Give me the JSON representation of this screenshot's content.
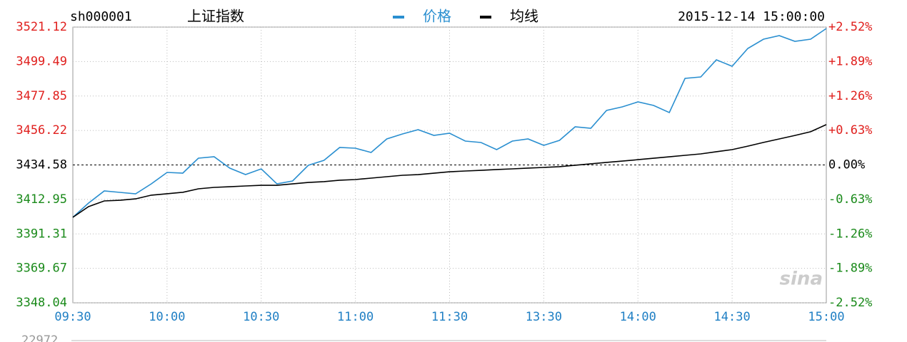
{
  "chart_data": {
    "type": "line",
    "symbol": "sh000001",
    "title": "上证指数",
    "datetime": "2015-12-14 15:00:00",
    "watermark": "sina",
    "volume_max": 22972,
    "x": [
      "09:30",
      "09:35",
      "09:40",
      "09:45",
      "09:50",
      "09:55",
      "10:00",
      "10:05",
      "10:10",
      "10:15",
      "10:20",
      "10:25",
      "10:30",
      "10:35",
      "10:40",
      "10:45",
      "10:50",
      "10:55",
      "11:00",
      "11:05",
      "11:10",
      "11:15",
      "11:20",
      "11:25",
      "11:30",
      "13:05",
      "13:10",
      "13:15",
      "13:20",
      "13:25",
      "13:30",
      "13:35",
      "13:40",
      "13:45",
      "13:50",
      "13:55",
      "14:00",
      "14:05",
      "14:10",
      "14:15",
      "14:20",
      "14:25",
      "14:30",
      "14:35",
      "14:40",
      "14:45",
      "14:50",
      "14:55",
      "15:00"
    ],
    "xticks": [
      "09:30",
      "10:00",
      "10:30",
      "11:00",
      "11:30",
      "13:30",
      "14:00",
      "14:30",
      "15:00"
    ],
    "series": [
      {
        "name": "价格",
        "color": "#2a8fd0",
        "values": [
          3401.71,
          3410.65,
          3418.25,
          3417.36,
          3416.47,
          3422.73,
          3429.88,
          3429.44,
          3438.83,
          3439.72,
          3432.57,
          3428.54,
          3432.12,
          3422.73,
          3424.52,
          3434.36,
          3437.49,
          3445.54,
          3445.09,
          3442.41,
          3450.9,
          3454.03,
          3456.72,
          3453.14,
          3454.48,
          3449.56,
          3448.67,
          3444.19,
          3449.56,
          3450.9,
          3446.88,
          3450.01,
          3458.51,
          3457.61,
          3468.79,
          3471.03,
          3474.16,
          3471.92,
          3467.45,
          3488.92,
          3489.81,
          3500.55,
          3496.52,
          3507.7,
          3513.52,
          3515.75,
          3512.18,
          3513.52,
          3520.23
        ]
      },
      {
        "name": "均线",
        "color": "#000000",
        "values": [
          3401.7,
          3408.4,
          3412.0,
          3412.4,
          3413.3,
          3415.6,
          3416.5,
          3417.4,
          3419.6,
          3420.5,
          3420.9,
          3421.4,
          3421.8,
          3421.8,
          3422.7,
          3423.6,
          3424.1,
          3425.0,
          3425.4,
          3426.3,
          3427.2,
          3428.1,
          3428.5,
          3429.4,
          3430.3,
          3430.8,
          3431.2,
          3431.7,
          3432.1,
          3432.6,
          3433.0,
          3433.5,
          3434.4,
          3435.3,
          3436.2,
          3437.0,
          3437.9,
          3438.8,
          3439.7,
          3440.6,
          3441.5,
          3442.9,
          3444.2,
          3446.4,
          3448.7,
          3450.9,
          3453.1,
          3455.4,
          3459.9
        ]
      }
    ],
    "ylim": [
      3348.04,
      3521.12
    ],
    "yticks": [
      3348.04,
      3369.67,
      3391.31,
      3412.95,
      3434.58,
      3456.22,
      3477.85,
      3499.49,
      3521.12
    ],
    "y2lim": [
      -2.52,
      2.52
    ],
    "y2ticks": [
      {
        "value": -2.52,
        "label": "-2.52%"
      },
      {
        "value": -1.89,
        "label": "-1.89%"
      },
      {
        "value": -1.26,
        "label": "-1.26%"
      },
      {
        "value": -0.63,
        "label": "-0.63%"
      },
      {
        "value": 0,
        "label": "0.00%"
      },
      {
        "value": 0.63,
        "label": "+0.63%"
      },
      {
        "value": 1.26,
        "label": "+1.26%"
      },
      {
        "value": 1.89,
        "label": "+1.89%"
      },
      {
        "value": 2.52,
        "label": "+2.52%"
      }
    ],
    "up_color": "#e0201e",
    "down_color": "#1a8a1a",
    "flat_color": "#000000",
    "xtick_color": "#1f7fc4",
    "grid": true
  }
}
